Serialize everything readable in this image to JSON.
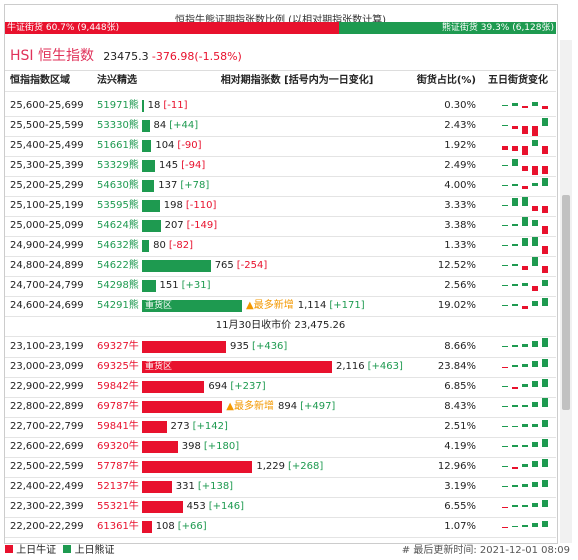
{
  "title": "恒指牛熊证期指张数比例 (以相对期指张数计算)",
  "ratio": {
    "bull_label": "牛证街货 60.7% (9,448张)",
    "bull_share": 60.7,
    "bear_label": "熊证街货 39.3% (6,128张)",
    "bear_share": 39.3
  },
  "index": {
    "name": "HSI 恒生指数",
    "level": "23475.3",
    "change": "-376.98(-1.58%)"
  },
  "columns": [
    "恒指指数区域",
    "法兴精选",
    "相对期指张数 [括号内为一日变化]",
    "街货占比(%)",
    "五日街货变化"
  ],
  "bear_rows": [
    {
      "range": "25,600-25,699",
      "code": "51971熊",
      "count": 18,
      "change": "[-11]",
      "share": "0.30%",
      "five_day": [
        1,
        3,
        -2,
        4,
        -3
      ]
    },
    {
      "range": "25,500-25,599",
      "code": "53330熊",
      "count": 84,
      "change": "[+44]",
      "share": "2.43%",
      "five_day": [
        1,
        -3,
        -8,
        -10,
        8
      ]
    },
    {
      "range": "25,400-25,499",
      "code": "51661熊",
      "count": 104,
      "change": "[-90]",
      "share": "1.92%",
      "five_day": [
        -4,
        -5,
        -9,
        6,
        -8
      ]
    },
    {
      "range": "25,300-25,399",
      "code": "53329熊",
      "count": 145,
      "change": "[-94]",
      "share": "2.49%",
      "five_day": [
        1,
        7,
        -5,
        -9,
        -8
      ]
    },
    {
      "range": "25,200-25,299",
      "code": "54630熊",
      "count": 137,
      "change": "[+78]",
      "share": "4.00%",
      "five_day": [
        1,
        2,
        -3,
        3,
        8
      ]
    },
    {
      "range": "25,100-25,199",
      "code": "53595熊",
      "count": 198,
      "change": "[-110]",
      "share": "3.33%",
      "five_day": [
        1,
        8,
        9,
        -5,
        -7
      ]
    },
    {
      "range": "25,000-25,099",
      "code": "54624熊",
      "count": 207,
      "change": "[-149]",
      "share": "3.38%",
      "five_day": [
        1,
        2,
        9,
        6,
        -8
      ]
    },
    {
      "range": "24,900-24,999",
      "code": "54632熊",
      "count": 80,
      "change": "[-82]",
      "share": "1.33%",
      "five_day": [
        1,
        2,
        8,
        9,
        -8
      ]
    },
    {
      "range": "24,800-24,899",
      "code": "54622熊",
      "count": 765,
      "change": "[-254]",
      "share": "12.52%",
      "five_day": [
        1,
        2,
        -4,
        9,
        -7
      ]
    },
    {
      "range": "24,700-24,799",
      "code": "54298熊",
      "count": 151,
      "change": "[+31]",
      "share": "2.56%",
      "five_day": [
        1,
        2,
        3,
        -5,
        6
      ]
    },
    {
      "range": "24,600-24,699",
      "code": "54291熊",
      "count": 1114,
      "count_label": "1,114",
      "change": "[+171]",
      "share": "19.02%",
      "tag": "重货区",
      "note": "▲最多新增",
      "five_day": [
        1,
        2,
        -3,
        5,
        8
      ]
    }
  ],
  "close_row": "11月30日收市价 23,475.26",
  "bull_rows": [
    {
      "range": "23,100-23,199",
      "code": "69327牛",
      "count": 935,
      "change": "[+436]",
      "share": "8.66%",
      "five_day": [
        1,
        2,
        3,
        6,
        9
      ]
    },
    {
      "range": "23,000-23,099",
      "code": "69325牛",
      "count": 2116,
      "count_label": "2,116",
      "change": "[+463]",
      "share": "23.84%",
      "tag": "重货区",
      "five_day": [
        -1,
        2,
        3,
        6,
        8
      ]
    },
    {
      "range": "22,900-22,999",
      "code": "59842牛",
      "count": 694,
      "change": "[+237]",
      "share": "6.85%",
      "five_day": [
        1,
        -2,
        3,
        6,
        8
      ]
    },
    {
      "range": "22,800-22,899",
      "code": "69787牛",
      "count": 894,
      "change": "[+497]",
      "share": "8.43%",
      "note": "▲最多新增",
      "five_day": [
        1,
        2,
        2,
        5,
        9
      ]
    },
    {
      "range": "22,700-22,799",
      "code": "59841牛",
      "count": 273,
      "change": "[+142]",
      "share": "2.51%",
      "five_day": [
        1,
        1,
        3,
        3,
        7
      ]
    },
    {
      "range": "22,600-22,699",
      "code": "69320牛",
      "count": 398,
      "change": "[+180]",
      "share": "4.19%",
      "five_day": [
        1,
        2,
        2,
        5,
        8
      ]
    },
    {
      "range": "22,500-22,599",
      "code": "57787牛",
      "count": 1229,
      "count_label": "1,229",
      "change": "[+268]",
      "share": "12.96%",
      "five_day": [
        1,
        -2,
        3,
        6,
        8
      ]
    },
    {
      "range": "22,400-22,499",
      "code": "52137牛",
      "count": 331,
      "change": "[+138]",
      "share": "3.19%",
      "five_day": [
        1,
        2,
        3,
        5,
        7
      ]
    },
    {
      "range": "22,300-22,399",
      "code": "55321牛",
      "count": 453,
      "change": "[+146]",
      "share": "6.55%",
      "five_day": [
        -1,
        2,
        2,
        4,
        7
      ]
    },
    {
      "range": "22,200-22,299",
      "code": "61361牛",
      "count": 108,
      "change": "[+66]",
      "share": "1.07%",
      "five_day": [
        -1,
        1,
        2,
        4,
        6
      ]
    }
  ],
  "legend": [
    "上日牛证",
    "上日熊证"
  ],
  "updated": "# 最后更新时间: 2021-12-01 08:09"
}
